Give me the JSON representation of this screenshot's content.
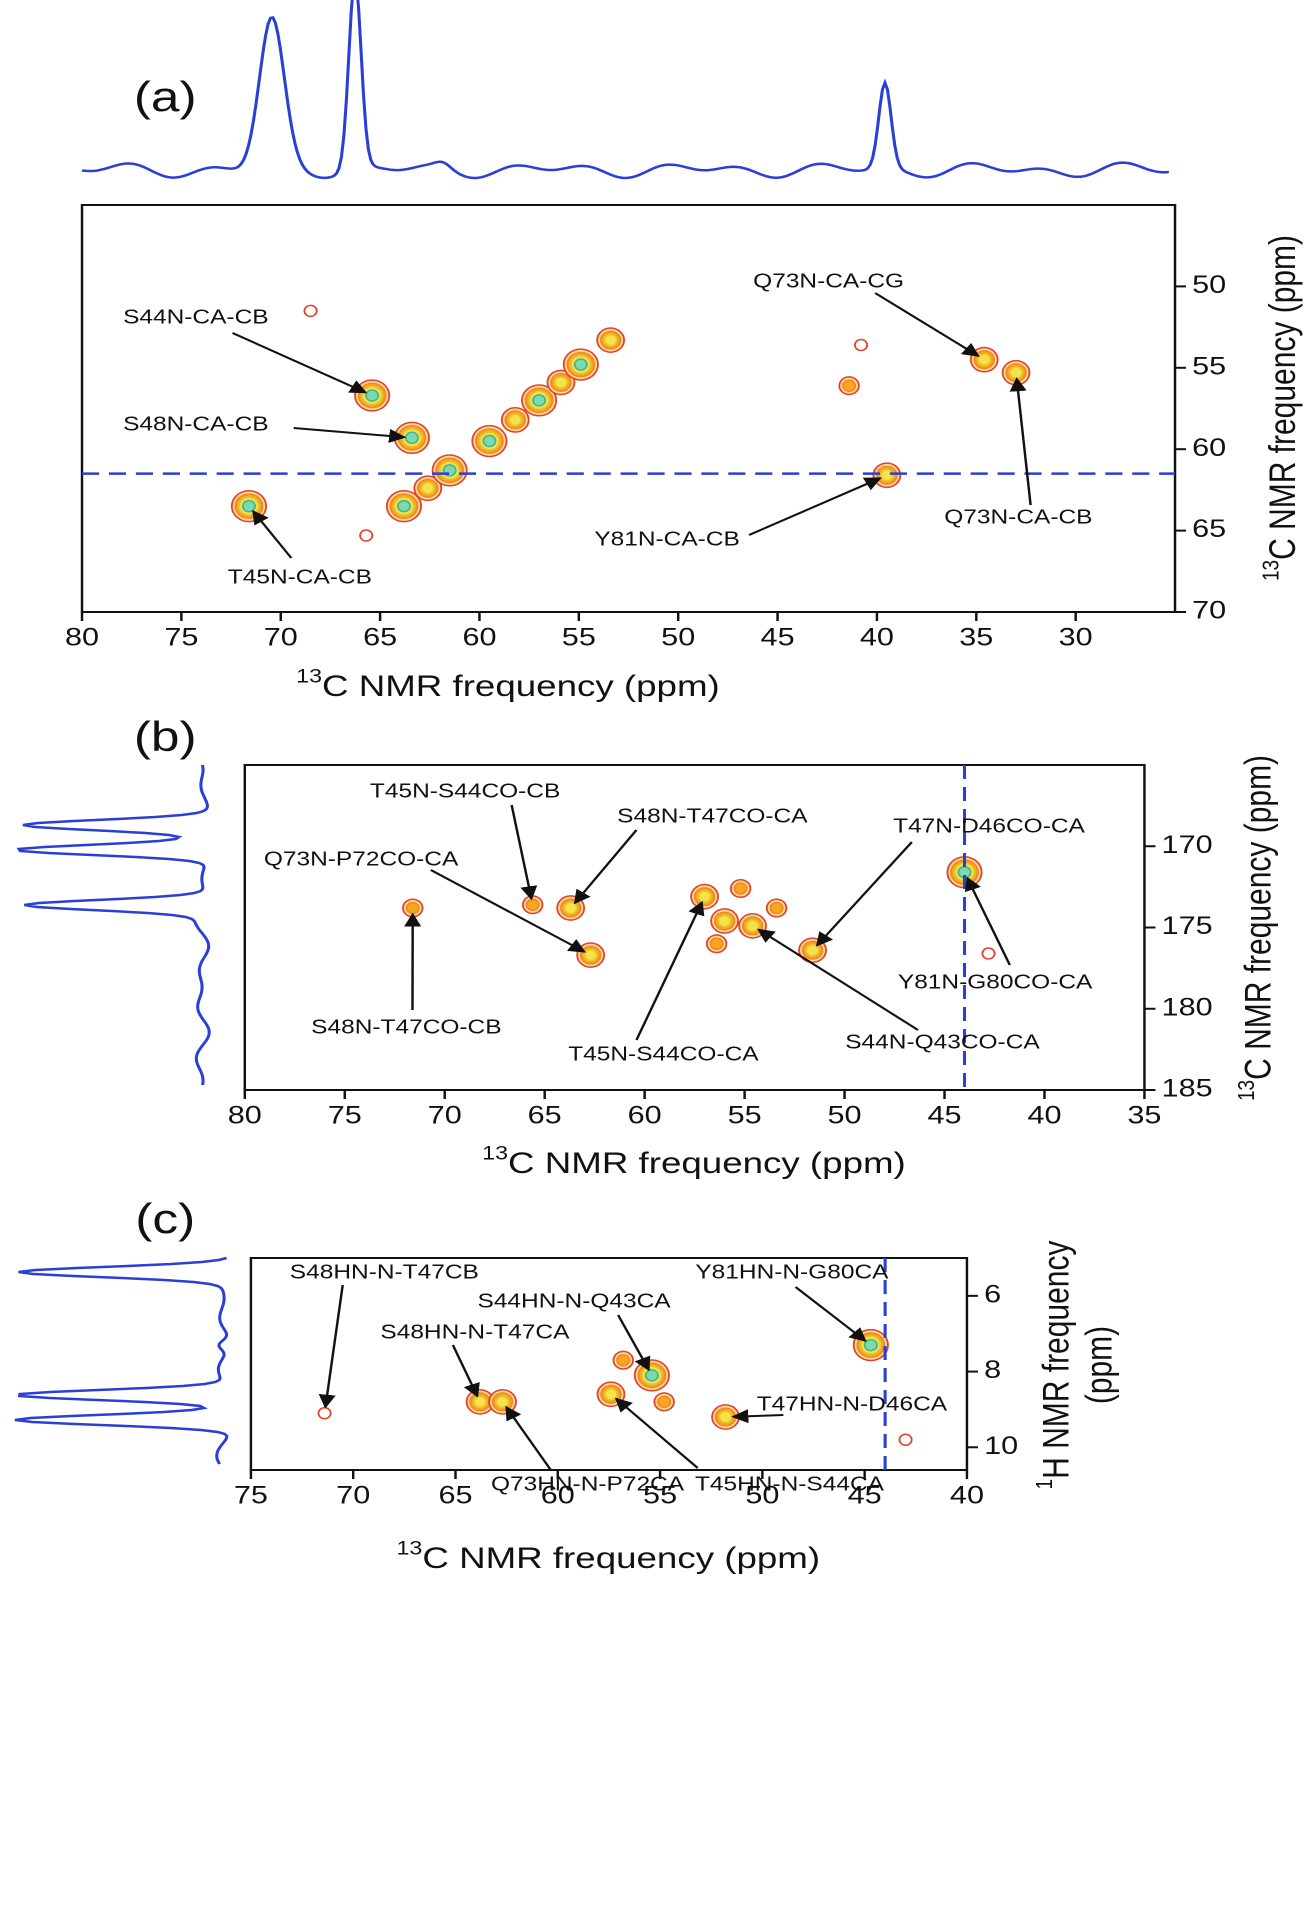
{
  "chart_data": [
    {
      "type": "contour",
      "panel_label": "(a)",
      "x_label_sup": "13",
      "x_label": "C NMR frequency (ppm)",
      "y_label_sup": "13",
      "y_label": "C NMR frequency (ppm)",
      "xlim": [
        80,
        25
      ],
      "xticks": [
        80,
        75,
        70,
        65,
        60,
        55,
        50,
        45,
        40,
        35,
        30
      ],
      "ylim": [
        45,
        70
      ],
      "yticks": [
        50,
        55,
        60,
        65,
        70
      ],
      "y_marker": 61.5,
      "peaks": [
        {
          "x": 65.4,
          "y": 56.7,
          "level": 4,
          "label": "S44N-CA-CB"
        },
        {
          "x": 63.4,
          "y": 59.3,
          "level": 4,
          "label": "S48N-CA-CB"
        },
        {
          "x": 71.6,
          "y": 63.5,
          "level": 4,
          "label": "T45N-CA-CB"
        },
        {
          "x": 39.5,
          "y": 61.6,
          "level": 3,
          "label": "Y81N-CA-CB"
        },
        {
          "x": 34.6,
          "y": 54.5,
          "level": 3,
          "label": "Q73N-CA-CG"
        },
        {
          "x": 33,
          "y": 55.3,
          "level": 3,
          "label": "Q73N-CA-CB"
        },
        {
          "x": 63.8,
          "y": 63.5,
          "level": 4
        },
        {
          "x": 62.6,
          "y": 62.4,
          "level": 3
        },
        {
          "x": 61.5,
          "y": 61.3,
          "level": 4
        },
        {
          "x": 59.5,
          "y": 59.5,
          "level": 4
        },
        {
          "x": 58.2,
          "y": 58.2,
          "level": 3
        },
        {
          "x": 57,
          "y": 57,
          "level": 4
        },
        {
          "x": 55.9,
          "y": 55.9,
          "level": 3
        },
        {
          "x": 54.9,
          "y": 54.8,
          "level": 4
        },
        {
          "x": 53.4,
          "y": 53.3,
          "level": 3
        },
        {
          "x": 41.4,
          "y": 56.1,
          "level": 2
        },
        {
          "x": 65.7,
          "y": 65.3,
          "level": 1
        },
        {
          "x": 68.5,
          "y": 51.5,
          "level": 1
        },
        {
          "x": 40.8,
          "y": 53.6,
          "level": 1
        }
      ]
    },
    {
      "type": "contour",
      "panel_label": "(b)",
      "x_label_sup": "13",
      "x_label": "C NMR frequency (ppm)",
      "y_label_sup": "13",
      "y_label": "C NMR frequency (ppm)",
      "xlim": [
        80,
        35
      ],
      "xticks": [
        80,
        75,
        70,
        65,
        60,
        55,
        50,
        45,
        40,
        35
      ],
      "ylim": [
        165,
        185
      ],
      "yticks": [
        170,
        175,
        180,
        185
      ],
      "x_marker": 44,
      "peaks": [
        {
          "x": 65.6,
          "y": 173.6,
          "level": 2,
          "label": "T45N-S44CO-CB"
        },
        {
          "x": 63.7,
          "y": 173.8,
          "level": 3,
          "label": "S48N-T47CO-CA"
        },
        {
          "x": 62.7,
          "y": 176.7,
          "level": 3,
          "label": "Q73N-P72CO-CA"
        },
        {
          "x": 71.6,
          "y": 173.8,
          "level": 2,
          "label": "S48N-T47CO-CB"
        },
        {
          "x": 57,
          "y": 173.1,
          "level": 3,
          "label": "T45N-S44CO-CA"
        },
        {
          "x": 54.6,
          "y": 174.9,
          "level": 3,
          "label": "S44N-Q43CO-CA"
        },
        {
          "x": 51.6,
          "y": 176.4,
          "level": 3,
          "label": "T47N-D46CO-CA"
        },
        {
          "x": 44,
          "y": 171.6,
          "level": 4,
          "label": "Y81N-G80CO-CA"
        },
        {
          "x": 56,
          "y": 174.6,
          "level": 3
        },
        {
          "x": 55.2,
          "y": 172.6,
          "level": 2
        },
        {
          "x": 53.4,
          "y": 173.8,
          "level": 2
        },
        {
          "x": 56.4,
          "y": 176,
          "level": 2
        },
        {
          "x": 42.8,
          "y": 176.6,
          "level": 1
        }
      ]
    },
    {
      "type": "contour",
      "panel_label": "(c)",
      "x_label_sup": "13",
      "x_label": "C NMR frequency (ppm)",
      "y_label_sup": "1",
      "y_label": "H NMR frequency",
      "y_label_2": "(ppm)",
      "xlim": [
        75,
        40
      ],
      "xticks": [
        75,
        70,
        65,
        60,
        55,
        50,
        45,
        40
      ],
      "ylim": [
        5,
        10.6
      ],
      "yticks": [
        6,
        8,
        10
      ],
      "x_marker": 44,
      "peaks": [
        {
          "x": 71.4,
          "y": 9.1,
          "level": 1,
          "label": "S48HN-N-T47CB"
        },
        {
          "x": 63.8,
          "y": 8.8,
          "level": 3,
          "label": "S48HN-N-T47CA"
        },
        {
          "x": 62.7,
          "y": 8.8,
          "level": 3,
          "label": "Q73HN-N-P72CA"
        },
        {
          "x": 55.4,
          "y": 8.1,
          "level": 4,
          "label": "S44HN-N-Q43CA"
        },
        {
          "x": 57.4,
          "y": 8.6,
          "level": 3,
          "label": "T45HN-N-S44CA"
        },
        {
          "x": 51.8,
          "y": 9.2,
          "level": 3,
          "label": "T47HN-N-D46CA"
        },
        {
          "x": 44.7,
          "y": 7.3,
          "level": 4,
          "label": "Y81HN-N-G80CA"
        },
        {
          "x": 56.8,
          "y": 7.7,
          "level": 2
        },
        {
          "x": 54.8,
          "y": 8.8,
          "level": 2
        },
        {
          "x": 43,
          "y": 9.8,
          "level": 1
        }
      ]
    }
  ]
}
